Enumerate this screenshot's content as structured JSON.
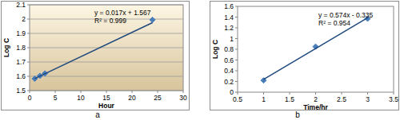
{
  "chart_data": [
    {
      "type": "scatter",
      "caption": "a",
      "x_label": "Hour",
      "y_label": "Log C",
      "annotations": [
        "y = 0.017x + 1.567",
        "R² = 0.999"
      ],
      "xlim": [
        0,
        30
      ],
      "xticks": [
        0,
        5,
        10,
        15,
        20,
        25,
        30
      ],
      "ylim": [
        1.5,
        2.1
      ],
      "yticks": [
        1.5,
        1.6,
        1.7,
        1.8,
        1.9,
        2,
        2.1
      ],
      "grid": true,
      "series": [
        {
          "type": "scatter",
          "color": "#4a7ebb",
          "marker": "diamond",
          "line_style": "none",
          "x": [
            1,
            2,
            3,
            24
          ],
          "values": [
            1.583,
            1.603,
            1.62,
            1.995
          ]
        },
        {
          "type": "line",
          "color": "#1f497d",
          "marker": "none",
          "line_style": "solid",
          "x": [
            1,
            24
          ],
          "values": [
            1.584,
            1.975
          ]
        }
      ]
    },
    {
      "type": "scatter",
      "caption": "b",
      "x_label": "Time/hr",
      "y_label": "Log C",
      "annotations": [
        "y = 0.574x - 0.335",
        "R² = 0.954"
      ],
      "xlim": [
        0.5,
        3.5
      ],
      "xticks": [
        0.5,
        1,
        1.5,
        2,
        2.5,
        3,
        3.5
      ],
      "ylim": [
        0,
        1.6
      ],
      "yticks": [
        0,
        0.2,
        0.4,
        0.6,
        0.8,
        1,
        1.2,
        1.4,
        1.6
      ],
      "grid": false,
      "series": [
        {
          "type": "scatter",
          "color": "#4a7ebb",
          "marker": "diamond",
          "line_style": "none",
          "x": [
            1,
            2,
            3
          ],
          "values": [
            0.22,
            0.85,
            1.37
          ]
        },
        {
          "type": "line",
          "color": "#1f497d",
          "marker": "none",
          "line_style": "solid",
          "x": [
            1,
            3
          ],
          "values": [
            0.239,
            1.387
          ]
        }
      ]
    }
  ]
}
